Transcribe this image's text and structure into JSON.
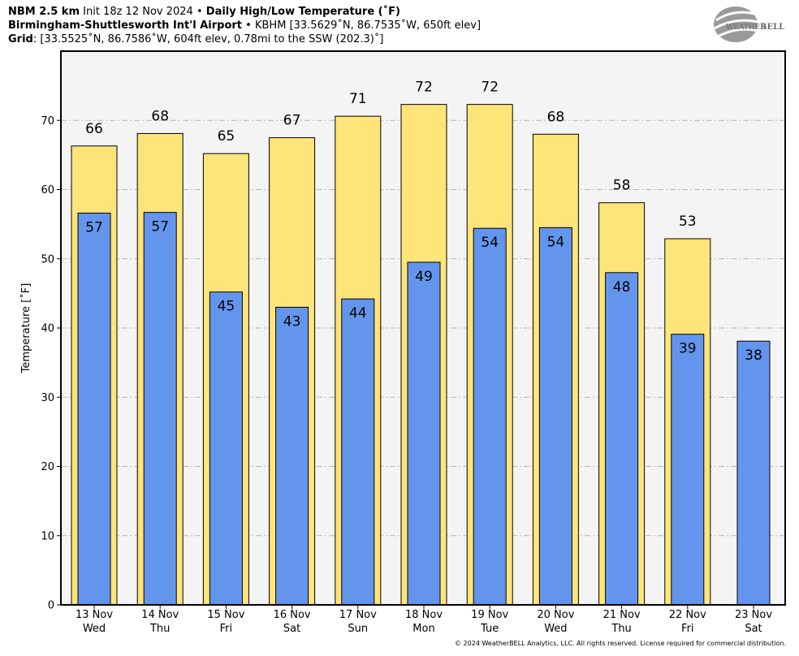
{
  "header": {
    "line1": {
      "model": "NBM 2.5 km",
      "init": "Init 18z 12 Nov 2024",
      "product": "Daily High/Low Temperature (˚F)"
    },
    "line2": {
      "station": "Birmingham-Shuttlesworth Int'l Airport",
      "info": "KBHM [33.5629˚N, 86.7535˚W, 650ft elev]"
    },
    "line3": {
      "label": "Grid",
      "info": ": [33.5525˚N, 86.7586˚W, 604ft elev, 0.78mi to the SSW (202.3)˚]"
    }
  },
  "logo": {
    "text_a": "WEATHER",
    "text_b": "BELL"
  },
  "copyright": "© 2024 WeatherBELL Analytics, LLC. All rights reserved. License required for commercial distribution.",
  "chart_data": {
    "type": "bar",
    "ylabel": "Temperature [˚F]",
    "ylim": [
      0,
      80
    ],
    "yticks": [
      0,
      10,
      20,
      30,
      40,
      50,
      60,
      70
    ],
    "grid": true,
    "categories": [
      [
        "13 Nov",
        "Wed"
      ],
      [
        "14 Nov",
        "Thu"
      ],
      [
        "15 Nov",
        "Fri"
      ],
      [
        "16 Nov",
        "Sat"
      ],
      [
        "17 Nov",
        "Sun"
      ],
      [
        "18 Nov",
        "Mon"
      ],
      [
        "19 Nov",
        "Tue"
      ],
      [
        "20 Nov",
        "Wed"
      ],
      [
        "21 Nov",
        "Thu"
      ],
      [
        "22 Nov",
        "Fri"
      ],
      [
        "23 Nov",
        "Sat"
      ]
    ],
    "series": [
      {
        "values": [
          66.3,
          68.1,
          65.2,
          67.5,
          70.6,
          72.3,
          72.3,
          68.0,
          58.1,
          52.9,
          null
        ],
        "labels": [
          "66",
          "68",
          "65",
          "67",
          "71",
          "72",
          "72",
          "68",
          "58",
          "53",
          ""
        ],
        "color": "#FFE47A"
      },
      {
        "values": [
          56.6,
          56.7,
          45.2,
          43.0,
          44.2,
          49.5,
          54.4,
          54.5,
          48.0,
          39.1,
          38.1
        ],
        "labels": [
          "57",
          "57",
          "45",
          "43",
          "44",
          "49",
          "54",
          "54",
          "48",
          "39",
          "38"
        ],
        "color": "#6495ED"
      }
    ]
  }
}
